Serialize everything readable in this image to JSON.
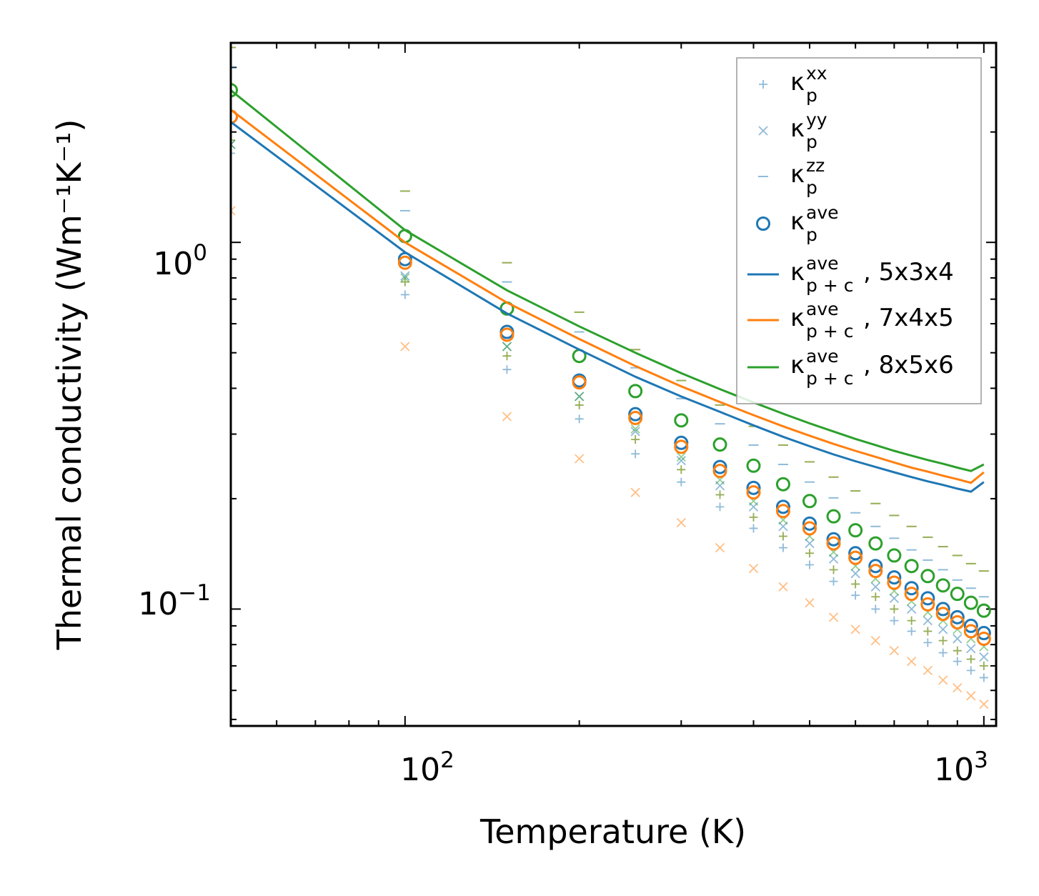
{
  "chart_data": {
    "type": "scatter",
    "xscale": "log",
    "yscale": "log",
    "xlim": [
      50,
      1050
    ],
    "ylim": [
      0.048,
      3.5
    ],
    "xlabel": "Temperature (K)",
    "ylabel": "Thermal conductivity (Wm⁻¹K⁻¹)",
    "xticks": [
      {
        "value": 100,
        "base": "10",
        "exp": "2"
      },
      {
        "value": 1000,
        "base": "10",
        "exp": "3"
      }
    ],
    "yticks": [
      {
        "value": 1,
        "base": "10",
        "exp": "0"
      },
      {
        "value": 0.1,
        "base": "10",
        "exp": "−1"
      }
    ],
    "legend_position": "top-right",
    "legend": [
      {
        "marker": "plus",
        "color": "#1f77b4",
        "faded": true,
        "main": "κ",
        "sub": "p",
        "sup": "xx",
        "suffix": ""
      },
      {
        "marker": "x",
        "color": "#1f77b4",
        "faded": true,
        "main": "κ",
        "sub": "p",
        "sup": "yy",
        "suffix": ""
      },
      {
        "marker": "dash",
        "color": "#1f77b4",
        "faded": true,
        "main": "κ",
        "sub": "p",
        "sup": "zz",
        "suffix": ""
      },
      {
        "marker": "circle",
        "color": "#1f77b4",
        "faded": false,
        "main": "κ",
        "sub": "p",
        "sup": "ave",
        "suffix": ""
      },
      {
        "marker": "line",
        "color": "#1f77b4",
        "faded": false,
        "main": "κ",
        "sub": "p + c",
        "sup": "ave",
        "suffix": ", 5x3x4"
      },
      {
        "marker": "line",
        "color": "#ff7f0e",
        "faded": false,
        "main": "κ",
        "sub": "p + c",
        "sup": "ave",
        "suffix": ", 7x4x5"
      },
      {
        "marker": "line",
        "color": "#2ca02c",
        "faded": false,
        "main": "κ",
        "sub": "p + c",
        "sup": "ave",
        "suffix": ", 8x5x6"
      }
    ],
    "x": [
      50,
      100,
      150,
      200,
      250,
      300,
      350,
      400,
      450,
      500,
      550,
      600,
      650,
      700,
      750,
      800,
      850,
      900,
      950,
      1000
    ],
    "series": [
      {
        "name": "5x3x4",
        "color": "#1f77b4",
        "kxx": [
          1.75,
          0.72,
          0.45,
          0.33,
          0.265,
          0.222,
          0.19,
          0.166,
          0.147,
          0.132,
          0.119,
          0.109,
          0.1,
          0.093,
          0.087,
          0.081,
          0.076,
          0.072,
          0.068,
          0.065
        ],
        "kyy": [
          1.85,
          0.81,
          0.52,
          0.38,
          0.305,
          0.254,
          0.217,
          0.19,
          0.168,
          0.151,
          0.137,
          0.125,
          0.115,
          0.107,
          0.1,
          0.093,
          0.088,
          0.083,
          0.078,
          0.074
        ],
        "kzz": [
          3.0,
          1.22,
          0.78,
          0.57,
          0.455,
          0.375,
          0.32,
          0.28,
          0.248,
          0.222,
          0.201,
          0.183,
          0.168,
          0.156,
          0.145,
          0.136,
          0.128,
          0.12,
          0.114,
          0.108
        ],
        "kave": [
          2.2,
          0.9,
          0.57,
          0.42,
          0.34,
          0.284,
          0.244,
          0.214,
          0.19,
          0.171,
          0.155,
          0.142,
          0.131,
          0.122,
          0.114,
          0.107,
          0.1,
          0.095,
          0.09,
          0.086
        ],
        "kpc": [
          2.13,
          0.94,
          0.64,
          0.51,
          0.43,
          0.38,
          0.345,
          0.317,
          0.295,
          0.278,
          0.264,
          0.253,
          0.244,
          0.236,
          0.229,
          0.223,
          0.218,
          0.213,
          0.209,
          0.222
        ]
      },
      {
        "name": "7x4x5",
        "color": "#ff7f0e",
        "kxx": [
          1.9,
          0.78,
          0.49,
          0.36,
          0.29,
          0.24,
          0.205,
          0.178,
          0.158,
          0.142,
          0.128,
          0.117,
          0.108,
          0.1,
          0.093,
          0.087,
          0.082,
          0.077,
          0.073,
          0.07
        ],
        "kyy": [
          1.22,
          0.52,
          0.335,
          0.257,
          0.208,
          0.172,
          0.147,
          0.129,
          0.115,
          0.104,
          0.095,
          0.088,
          0.082,
          0.077,
          0.072,
          0.068,
          0.064,
          0.061,
          0.058,
          0.055
        ],
        "kzz": [
          3.4,
          1.38,
          0.88,
          0.645,
          0.51,
          0.42,
          0.36,
          0.315,
          0.28,
          0.252,
          0.229,
          0.21,
          0.194,
          0.18,
          0.168,
          0.157,
          0.148,
          0.14,
          0.133,
          0.127
        ],
        "kave": [
          2.2,
          0.88,
          0.56,
          0.415,
          0.332,
          0.277,
          0.238,
          0.208,
          0.185,
          0.166,
          0.151,
          0.138,
          0.127,
          0.118,
          0.11,
          0.103,
          0.097,
          0.092,
          0.087,
          0.083
        ],
        "kpc": [
          2.3,
          1.0,
          0.685,
          0.545,
          0.46,
          0.405,
          0.367,
          0.338,
          0.315,
          0.297,
          0.282,
          0.27,
          0.26,
          0.251,
          0.243,
          0.237,
          0.231,
          0.226,
          0.221,
          0.236
        ]
      },
      {
        "name": "8x5x6",
        "color": "#2ca02c",
        "kxx": [
          1.9,
          0.78,
          0.49,
          0.36,
          0.29,
          0.24,
          0.205,
          0.178,
          0.158,
          0.142,
          0.128,
          0.117,
          0.108,
          0.1,
          0.093,
          0.087,
          0.082,
          0.077,
          0.073,
          0.07
        ],
        "kyy": [
          1.85,
          0.8,
          0.52,
          0.38,
          0.31,
          0.26,
          0.225,
          0.197,
          0.175,
          0.158,
          0.143,
          0.131,
          0.121,
          0.112,
          0.105,
          0.098,
          0.093,
          0.088,
          0.083,
          0.079
        ],
        "kzz": [
          3.4,
          1.38,
          0.88,
          0.645,
          0.51,
          0.42,
          0.36,
          0.315,
          0.28,
          0.252,
          0.229,
          0.21,
          0.194,
          0.18,
          0.168,
          0.157,
          0.148,
          0.14,
          0.133,
          0.127
        ],
        "kave": [
          2.6,
          1.04,
          0.66,
          0.49,
          0.393,
          0.327,
          0.281,
          0.246,
          0.219,
          0.197,
          0.179,
          0.164,
          0.151,
          0.14,
          0.131,
          0.123,
          0.116,
          0.11,
          0.104,
          0.099
        ],
        "kpc": [
          2.6,
          1.08,
          0.74,
          0.59,
          0.5,
          0.44,
          0.398,
          0.366,
          0.341,
          0.321,
          0.305,
          0.291,
          0.28,
          0.27,
          0.262,
          0.255,
          0.249,
          0.243,
          0.238,
          0.248
        ]
      }
    ]
  }
}
